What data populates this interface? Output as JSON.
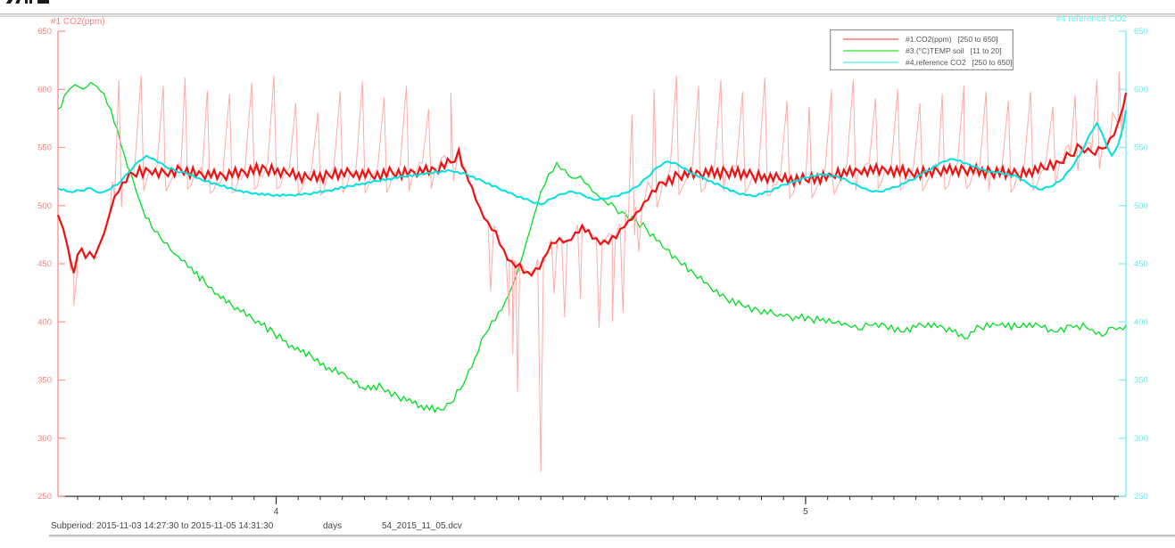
{
  "legend": {
    "entries": [
      {
        "label": "#1.CO2(ppm)",
        "range": "[250 to 650]",
        "color": "#ff9999"
      },
      {
        "label": "#3.(°C)TEMP soil",
        "range": "[11 to 20]",
        "color": "#77ee77"
      },
      {
        "label": "#4.reference CO2",
        "range": "[250 to 650]",
        "color": "#8cf4f4"
      }
    ]
  },
  "status": {
    "subperiod": "Subperiod: 2015-11-03 14:27:30 to 2015-11-05 14:31:30",
    "x_unit": "days",
    "file": "54_2015_11_05.dcv"
  },
  "chart_data": {
    "type": "line",
    "xlabel": "days",
    "x_range": [
      3.588,
      5.605
    ],
    "x_ticks_major": [
      4,
      5
    ],
    "x_tick_major_labels": [
      "4",
      "5"
    ],
    "x_tick_minor_step": 0.0416667,
    "x_axis_color": "#2f2f2f",
    "x_label_color": "#454545",
    "y_left": {
      "label": "#1 CO2(ppm)",
      "range": [
        250,
        650
      ],
      "ticks": [
        650,
        600,
        550,
        500,
        450,
        400,
        350,
        300,
        250
      ],
      "axis_color": "#ff9e9e",
      "tick_color": "#ff8282"
    },
    "y_right": {
      "label": "#4 reference CO2",
      "range": [
        250,
        650
      ],
      "ticks": [
        650,
        600,
        550,
        500,
        450,
        400,
        350,
        300,
        250
      ],
      "axis_color": "#8df0f0",
      "tick_color": "#6eeaea"
    },
    "series": [
      {
        "name": "#1.CO2(ppm)",
        "axis": "left",
        "color": "#ee1111",
        "raw_color": "#ffaaaa",
        "avg_points": [
          [
            3.588,
            492
          ],
          [
            3.598,
            480
          ],
          [
            3.606,
            465
          ],
          [
            3.613,
            450
          ],
          [
            3.618,
            442
          ],
          [
            3.625,
            458
          ],
          [
            3.633,
            463
          ],
          [
            3.64,
            455
          ],
          [
            3.648,
            460
          ],
          [
            3.656,
            455
          ],
          [
            3.665,
            465
          ],
          [
            3.675,
            476
          ],
          [
            3.685,
            492
          ],
          [
            3.695,
            508
          ],
          [
            3.71,
            520
          ],
          [
            3.73,
            527
          ],
          [
            3.76,
            530
          ],
          [
            3.79,
            528
          ],
          [
            3.82,
            531
          ],
          [
            3.86,
            527
          ],
          [
            3.9,
            526
          ],
          [
            3.94,
            529
          ],
          [
            3.98,
            532
          ],
          [
            4.02,
            528
          ],
          [
            4.06,
            524
          ],
          [
            4.1,
            526
          ],
          [
            4.14,
            528
          ],
          [
            4.18,
            526
          ],
          [
            4.22,
            528
          ],
          [
            4.26,
            529
          ],
          [
            4.3,
            531
          ],
          [
            4.33,
            537
          ],
          [
            4.345,
            548
          ],
          [
            4.357,
            530
          ],
          [
            4.37,
            516
          ],
          [
            4.385,
            498
          ],
          [
            4.4,
            486
          ],
          [
            4.415,
            478
          ],
          [
            4.43,
            462
          ],
          [
            4.445,
            452
          ],
          [
            4.46,
            450
          ],
          [
            4.475,
            443
          ],
          [
            4.49,
            446
          ],
          [
            4.505,
            455
          ],
          [
            4.52,
            468
          ],
          [
            4.535,
            472
          ],
          [
            4.55,
            470
          ],
          [
            4.565,
            477
          ],
          [
            4.578,
            483
          ],
          [
            4.59,
            479
          ],
          [
            4.605,
            472
          ],
          [
            4.62,
            470
          ],
          [
            4.635,
            474
          ],
          [
            4.65,
            480
          ],
          [
            4.665,
            487
          ],
          [
            4.68,
            494
          ],
          [
            4.695,
            503
          ],
          [
            4.71,
            513
          ],
          [
            4.73,
            520
          ],
          [
            4.76,
            526
          ],
          [
            4.8,
            528
          ],
          [
            4.85,
            529
          ],
          [
            4.9,
            526
          ],
          [
            4.95,
            523
          ],
          [
            5.0,
            522
          ],
          [
            5.05,
            526
          ],
          [
            5.1,
            530
          ],
          [
            5.15,
            531
          ],
          [
            5.2,
            528
          ],
          [
            5.25,
            530
          ],
          [
            5.3,
            531
          ],
          [
            5.35,
            529
          ],
          [
            5.4,
            527
          ],
          [
            5.45,
            532
          ],
          [
            5.48,
            537
          ],
          [
            5.5,
            543
          ],
          [
            5.52,
            550
          ],
          [
            5.54,
            546
          ],
          [
            5.56,
            549
          ],
          [
            5.575,
            558
          ],
          [
            5.59,
            571
          ],
          [
            5.6,
            585
          ],
          [
            5.605,
            597
          ]
        ],
        "spikes_up": [
          [
            3.703,
            608
          ],
          [
            3.745,
            612
          ],
          [
            3.787,
            603
          ],
          [
            3.828,
            610
          ],
          [
            3.87,
            599
          ],
          [
            3.912,
            596
          ],
          [
            3.954,
            606
          ],
          [
            3.996,
            612
          ],
          [
            4.037,
            588
          ],
          [
            4.079,
            580
          ],
          [
            4.121,
            598
          ],
          [
            4.163,
            607
          ],
          [
            4.204,
            593
          ],
          [
            4.246,
            603
          ],
          [
            4.288,
            583
          ],
          [
            4.33,
            597
          ],
          [
            4.672,
            578
          ],
          [
            4.714,
            600
          ],
          [
            4.756,
            612
          ],
          [
            4.798,
            603
          ],
          [
            4.84,
            608
          ],
          [
            4.881,
            598
          ],
          [
            4.923,
            610
          ],
          [
            4.965,
            590
          ],
          [
            5.007,
            585
          ],
          [
            5.049,
            600
          ],
          [
            5.09,
            608
          ],
          [
            5.132,
            592
          ],
          [
            5.174,
            600
          ],
          [
            5.216,
            588
          ],
          [
            5.258,
            596
          ],
          [
            5.299,
            603
          ],
          [
            5.341,
            598
          ],
          [
            5.383,
            590
          ],
          [
            5.425,
            598
          ],
          [
            5.467,
            585
          ],
          [
            5.509,
            595
          ],
          [
            5.55,
            608
          ],
          [
            5.592,
            615
          ]
        ],
        "spikes_down": [
          [
            3.618,
            414
          ],
          [
            4.405,
            426
          ],
          [
            4.44,
            405
          ],
          [
            4.447,
            372
          ],
          [
            4.456,
            340
          ],
          [
            4.5,
            271
          ],
          [
            4.525,
            424
          ],
          [
            4.545,
            404
          ],
          [
            4.575,
            420
          ],
          [
            4.61,
            395
          ],
          [
            4.635,
            400
          ],
          [
            4.655,
            408
          ],
          [
            4.685,
            460
          ]
        ]
      },
      {
        "name": "#3.(°C)TEMP soil",
        "axis": "left",
        "display_range": [
          250,
          650
        ],
        "value_range": [
          11,
          20
        ],
        "color": "#00dd22",
        "points": [
          [
            3.588,
            582
          ],
          [
            3.6,
            594
          ],
          [
            3.61,
            600
          ],
          [
            3.62,
            604
          ],
          [
            3.635,
            601
          ],
          [
            3.65,
            606
          ],
          [
            3.662,
            603
          ],
          [
            3.675,
            596
          ],
          [
            3.688,
            582
          ],
          [
            3.7,
            565
          ],
          [
            3.714,
            543
          ],
          [
            3.73,
            521
          ],
          [
            3.748,
            497
          ],
          [
            3.765,
            482
          ],
          [
            3.782,
            471
          ],
          [
            3.8,
            463
          ],
          [
            3.815,
            457
          ],
          [
            3.84,
            446
          ],
          [
            3.866,
            434
          ],
          [
            3.89,
            424
          ],
          [
            3.916,
            414
          ],
          [
            3.955,
            403
          ],
          [
            3.995,
            391
          ],
          [
            4.03,
            379
          ],
          [
            4.067,
            370
          ],
          [
            4.1,
            360
          ],
          [
            4.13,
            355
          ],
          [
            4.163,
            343
          ],
          [
            4.2,
            344
          ],
          [
            4.23,
            336
          ],
          [
            4.274,
            328
          ],
          [
            4.31,
            324
          ],
          [
            4.33,
            331
          ],
          [
            4.353,
            346
          ],
          [
            4.375,
            368
          ],
          [
            4.395,
            390
          ],
          [
            4.42,
            408
          ],
          [
            4.44,
            423
          ],
          [
            4.46,
            448
          ],
          [
            4.48,
            480
          ],
          [
            4.5,
            512
          ],
          [
            4.515,
            528
          ],
          [
            4.53,
            537
          ],
          [
            4.545,
            531
          ],
          [
            4.56,
            523
          ],
          [
            4.575,
            526
          ],
          [
            4.59,
            518
          ],
          [
            4.605,
            510
          ],
          [
            4.62,
            505
          ],
          [
            4.64,
            498
          ],
          [
            4.66,
            492
          ],
          [
            4.68,
            487
          ],
          [
            4.7,
            480
          ],
          [
            4.73,
            465
          ],
          [
            4.76,
            452
          ],
          [
            4.79,
            442
          ],
          [
            4.82,
            430
          ],
          [
            4.85,
            420
          ],
          [
            4.88,
            415
          ],
          [
            4.91,
            410
          ],
          [
            4.94,
            407
          ],
          [
            4.97,
            404
          ],
          [
            5.01,
            403
          ],
          [
            5.05,
            400
          ],
          [
            5.08,
            398
          ],
          [
            5.1,
            394
          ],
          [
            5.12,
            398
          ],
          [
            5.15,
            397
          ],
          [
            5.18,
            392
          ],
          [
            5.22,
            398
          ],
          [
            5.26,
            396
          ],
          [
            5.3,
            386
          ],
          [
            5.33,
            396
          ],
          [
            5.36,
            398
          ],
          [
            5.4,
            396
          ],
          [
            5.44,
            398
          ],
          [
            5.47,
            391
          ],
          [
            5.5,
            397
          ],
          [
            5.53,
            396
          ],
          [
            5.56,
            388
          ],
          [
            5.58,
            396
          ],
          [
            5.6,
            393
          ],
          [
            5.605,
            397
          ]
        ]
      },
      {
        "name": "#4.reference CO2",
        "axis": "right",
        "color": "#00e2e2",
        "points": [
          [
            3.588,
            515
          ],
          [
            3.61,
            512
          ],
          [
            3.63,
            513
          ],
          [
            3.65,
            515
          ],
          [
            3.665,
            511
          ],
          [
            3.68,
            513
          ],
          [
            3.7,
            518
          ],
          [
            3.72,
            528
          ],
          [
            3.74,
            538
          ],
          [
            3.755,
            543
          ],
          [
            3.77,
            540
          ],
          [
            3.79,
            534
          ],
          [
            3.81,
            530
          ],
          [
            3.83,
            528
          ],
          [
            3.86,
            522
          ],
          [
            3.89,
            518
          ],
          [
            3.92,
            514
          ],
          [
            3.95,
            511
          ],
          [
            3.99,
            509
          ],
          [
            4.03,
            509
          ],
          [
            4.06,
            510
          ],
          [
            4.1,
            513
          ],
          [
            4.14,
            517
          ],
          [
            4.19,
            521
          ],
          [
            4.24,
            525
          ],
          [
            4.29,
            528
          ],
          [
            4.33,
            530
          ],
          [
            4.36,
            527
          ],
          [
            4.39,
            521
          ],
          [
            4.42,
            515
          ],
          [
            4.45,
            509
          ],
          [
            4.48,
            504
          ],
          [
            4.5,
            501
          ],
          [
            4.52,
            506
          ],
          [
            4.54,
            510
          ],
          [
            4.56,
            512
          ],
          [
            4.58,
            509
          ],
          [
            4.6,
            505
          ],
          [
            4.62,
            506
          ],
          [
            4.64,
            508
          ],
          [
            4.66,
            511
          ],
          [
            4.68,
            516
          ],
          [
            4.7,
            524
          ],
          [
            4.72,
            533
          ],
          [
            4.74,
            538
          ],
          [
            4.76,
            535
          ],
          [
            4.78,
            529
          ],
          [
            4.81,
            523
          ],
          [
            4.84,
            517
          ],
          [
            4.87,
            511
          ],
          [
            4.9,
            508
          ],
          [
            4.93,
            512
          ],
          [
            4.96,
            518
          ],
          [
            5.0,
            524
          ],
          [
            5.03,
            527
          ],
          [
            5.06,
            525
          ],
          [
            5.08,
            521
          ],
          [
            5.1,
            517
          ],
          [
            5.12,
            513
          ],
          [
            5.14,
            512
          ],
          [
            5.17,
            516
          ],
          [
            5.2,
            522
          ],
          [
            5.23,
            530
          ],
          [
            5.26,
            538
          ],
          [
            5.28,
            540
          ],
          [
            5.31,
            535
          ],
          [
            5.34,
            530
          ],
          [
            5.37,
            528
          ],
          [
            5.4,
            525
          ],
          [
            5.42,
            519
          ],
          [
            5.44,
            514
          ],
          [
            5.46,
            516
          ],
          [
            5.48,
            521
          ],
          [
            5.5,
            531
          ],
          [
            5.52,
            545
          ],
          [
            5.535,
            560
          ],
          [
            5.55,
            571
          ],
          [
            5.56,
            562
          ],
          [
            5.57,
            550
          ],
          [
            5.578,
            543
          ],
          [
            5.59,
            552
          ],
          [
            5.6,
            568
          ],
          [
            5.605,
            582
          ]
        ]
      }
    ]
  }
}
